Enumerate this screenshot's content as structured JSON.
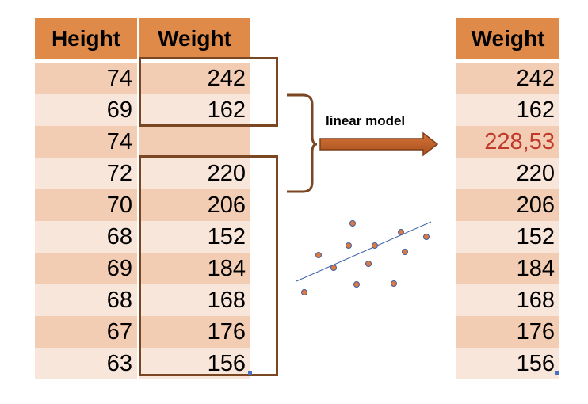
{
  "left_table": {
    "headers": [
      "Height",
      "Weight"
    ],
    "rows": [
      {
        "height": "74",
        "weight": "242"
      },
      {
        "height": "69",
        "weight": "162"
      },
      {
        "height": "74",
        "weight": ""
      },
      {
        "height": "72",
        "weight": "220"
      },
      {
        "height": "70",
        "weight": "206"
      },
      {
        "height": "68",
        "weight": "152"
      },
      {
        "height": "69",
        "weight": "184"
      },
      {
        "height": "68",
        "weight": "168"
      },
      {
        "height": "67",
        "weight": "176"
      },
      {
        "height": "63",
        "weight": "156"
      }
    ]
  },
  "right_table": {
    "header": "Weight",
    "rows": [
      "242",
      "162",
      "228,53",
      "220",
      "206",
      "152",
      "184",
      "168",
      "176",
      "156"
    ],
    "imputed_index": 2,
    "imputed_color": "#c0392b"
  },
  "arrow": {
    "label": "linear model",
    "color": "#c0652e"
  },
  "colors": {
    "header": "#e08a4a",
    "row_dark": "#f2cdb3",
    "row_light": "#f9e6da",
    "bracket": "#7a4722",
    "point": "#e0793a",
    "point_edge": "#3b5fa8",
    "regression_line": "#3b5fa8"
  }
}
